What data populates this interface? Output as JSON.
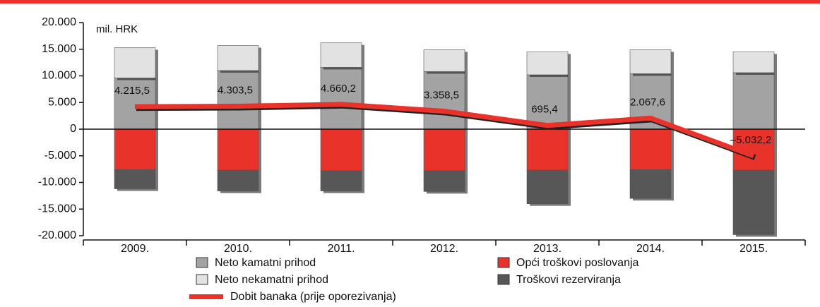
{
  "chart_data": {
    "type": "bar",
    "unit_label": "mil. HRK",
    "categories": [
      "2009.",
      "2010.",
      "2011.",
      "2012.",
      "2013.",
      "2014.",
      "2015."
    ],
    "series": [
      {
        "name": "Neto kamatni prihod",
        "color": "#a3a3a3",
        "values": [
          9600,
          11000,
          11600,
          10800,
          10200,
          10400,
          10600
        ]
      },
      {
        "name": "Opći troškovi poslovanja",
        "color": "#e8322a",
        "values": [
          -7600,
          -7700,
          -7800,
          -7800,
          -7700,
          -7600,
          -7700
        ]
      },
      {
        "name": "Neto nekamatni prihod",
        "color": "#e2e2e2",
        "values": [
          5700,
          4700,
          4600,
          4100,
          4300,
          4500,
          3900
        ]
      },
      {
        "name": "Troškovi rezerviranja",
        "color": "#575757",
        "values": [
          -3600,
          -3900,
          -3800,
          -3900,
          -6300,
          -5400,
          -12100
        ]
      },
      {
        "name": "Dobit banaka (prije oporezivanja)",
        "type": "line",
        "color": "#e8322a",
        "values": [
          4215.5,
          4303.5,
          4660.2,
          3358.5,
          695.4,
          2067.6,
          -5032.2
        ],
        "value_labels": [
          "4.215,5",
          "4.303,5",
          "4.660,2",
          "3.358,5",
          "695,4",
          "2.067,6",
          "–5.032,2"
        ]
      }
    ],
    "ylim": [
      -20000,
      20000
    ],
    "yticks": [
      {
        "value": -20000,
        "label": "-20.000"
      },
      {
        "value": -15000,
        "label": "-15.000"
      },
      {
        "value": -10000,
        "label": "-10.000"
      },
      {
        "value": -5000,
        "label": "-5.000"
      },
      0,
      {
        "value": 5000,
        "label": "5.000"
      },
      {
        "value": 10000,
        "label": "10.000"
      },
      {
        "value": 15000,
        "label": "15.000"
      },
      {
        "value": 20000,
        "label": "20.000"
      }
    ]
  }
}
